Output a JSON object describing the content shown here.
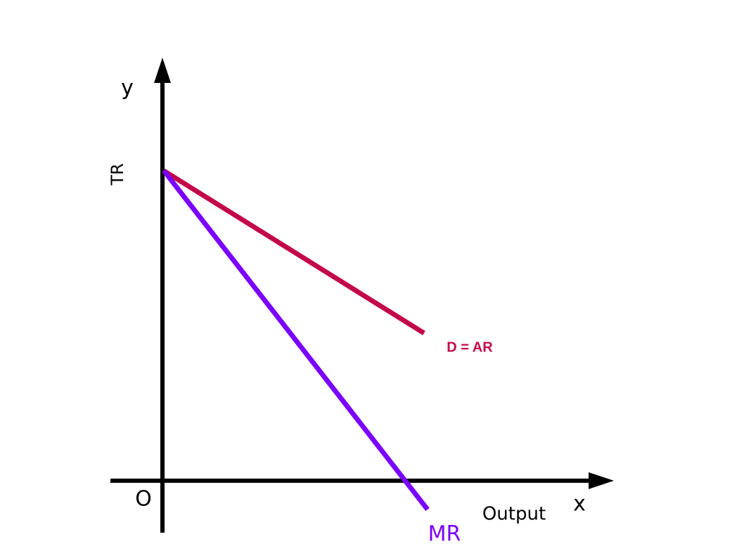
{
  "axes": {
    "y_label": "y",
    "y_title": "TR",
    "origin": "O",
    "x_title": "Output",
    "x_label": "x"
  },
  "curves": [
    {
      "label": "D = AR"
    },
    {
      "label": "MR"
    }
  ]
}
